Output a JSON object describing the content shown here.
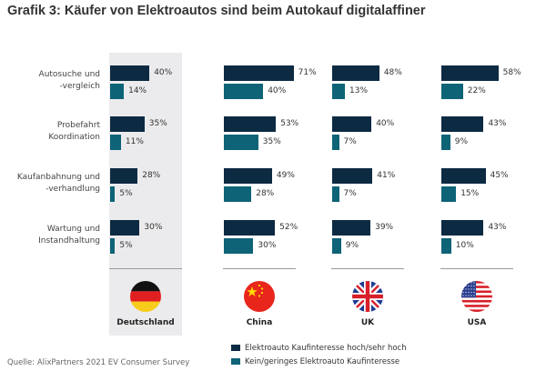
{
  "title": "Grafik 3: Käufer von Elektroautos sind beim Autokauf digitalaffiner",
  "source": "Quelle: AlixPartners 2021 EV Consumer Survey",
  "colors": {
    "high": "#0d2a43",
    "low": "#0e6377",
    "highlight_bg": "#ebebed"
  },
  "chart_data": {
    "type": "bar",
    "orientation": "horizontal",
    "title": "Grafik 3: Käufer von Elektroautos sind beim Autokauf digitalaffiner",
    "categories": [
      "Autosuche und -vergleich",
      "Probefahrt Koordination",
      "Kaufanbahnung und -verhandlung",
      "Wartung und Instandhaltung"
    ],
    "category_lines": [
      [
        "Autosuche und",
        "-vergleich"
      ],
      [
        "Probefahrt",
        "Koordination"
      ],
      [
        "Kaufanbahnung und",
        "-verhandlung"
      ],
      [
        "Wartung und",
        "Instandhaltung"
      ]
    ],
    "panels": [
      {
        "country": "Deutschland",
        "flag": "germany-flag",
        "highlighted": true,
        "series": [
          {
            "name": "Elektroauto Kaufinteresse hoch/sehr hoch",
            "values": [
              40,
              35,
              28,
              30
            ]
          },
          {
            "name": "Kein/geringes Elektroauto Kaufinteresse",
            "values": [
              14,
              11,
              5,
              5
            ]
          }
        ]
      },
      {
        "country": "China",
        "flag": "china-flag",
        "highlighted": false,
        "series": [
          {
            "name": "Elektroauto Kaufinteresse hoch/sehr hoch",
            "values": [
              71,
              53,
              49,
              52
            ]
          },
          {
            "name": "Kein/geringes Elektroauto Kaufinteresse",
            "values": [
              40,
              35,
              28,
              30
            ]
          }
        ]
      },
      {
        "country": "UK",
        "flag": "uk-flag",
        "highlighted": false,
        "series": [
          {
            "name": "Elektroauto Kaufinteresse hoch/sehr hoch",
            "values": [
              48,
              40,
              41,
              39
            ]
          },
          {
            "name": "Kein/geringes Elektroauto Kaufinteresse",
            "values": [
              13,
              7,
              7,
              9
            ]
          }
        ]
      },
      {
        "country": "USA",
        "flag": "usa-flag",
        "highlighted": false,
        "series": [
          {
            "name": "Elektroauto Kaufinteresse hoch/sehr hoch",
            "values": [
              58,
              43,
              45,
              43
            ]
          },
          {
            "name": "Kein/geringes Elektroauto Kaufinteresse",
            "values": [
              22,
              9,
              15,
              10
            ]
          }
        ]
      }
    ],
    "value_suffix": "%",
    "legend": {
      "placement": "bottom",
      "entries": [
        "Elektroauto Kaufinteresse hoch/sehr hoch",
        "Kein/geringes Elektroauto Kaufinteresse"
      ]
    },
    "xlim": [
      0,
      100
    ],
    "grid": false
  }
}
